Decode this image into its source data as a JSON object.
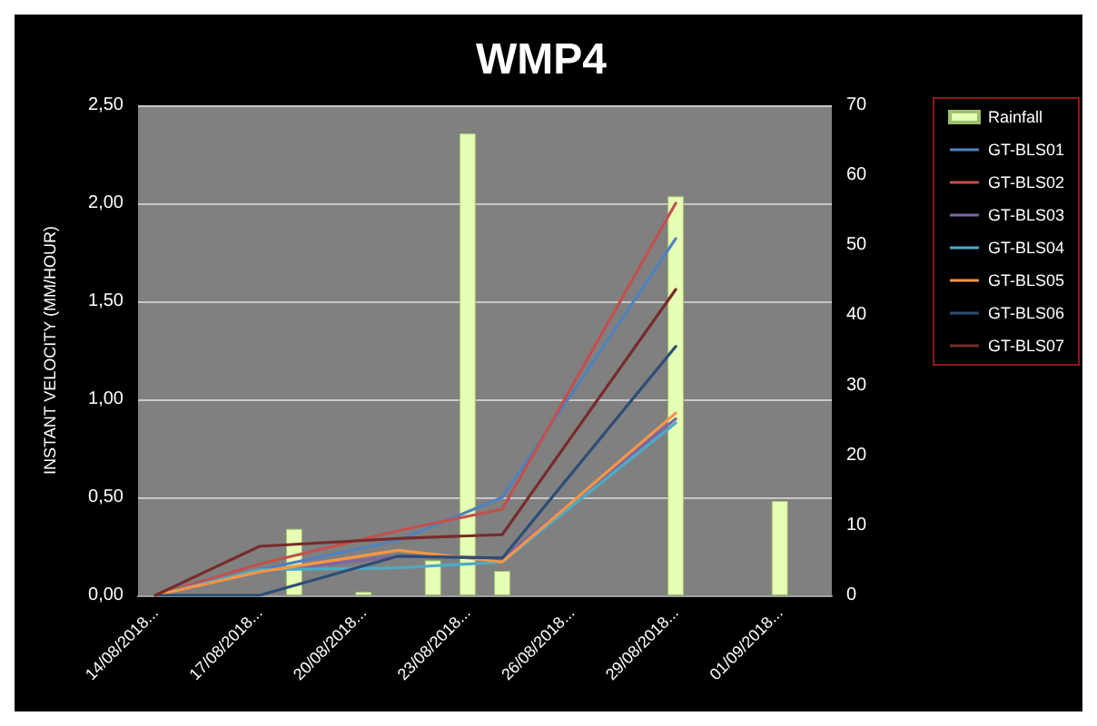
{
  "chart_data": {
    "type": "line",
    "title": "WMP4",
    "ylabel": "INSTANT VELOCITY (MM/HOUR)",
    "xlim": [
      "2018-08-13T12:00",
      "2018-09-02T12:00"
    ],
    "xticks": [
      {
        "value": "2018-08-14",
        "label": "14/08/2018..."
      },
      {
        "value": "2018-08-17",
        "label": "17/08/2018..."
      },
      {
        "value": "2018-08-20",
        "label": "20/08/2018..."
      },
      {
        "value": "2018-08-23",
        "label": "23/08/2018..."
      },
      {
        "value": "2018-08-26",
        "label": "26/08/2018..."
      },
      {
        "value": "2018-08-29",
        "label": "29/08/2018..."
      },
      {
        "value": "2018-09-01",
        "label": "01/09/2018..."
      }
    ],
    "ylim": [
      0,
      2.5
    ],
    "yticks": [
      {
        "value": 0,
        "label": "0,00"
      },
      {
        "value": 0.5,
        "label": "0,50"
      },
      {
        "value": 1,
        "label": "1,00"
      },
      {
        "value": 1.5,
        "label": "1,50"
      },
      {
        "value": 2,
        "label": "2,00"
      },
      {
        "value": 2.5,
        "label": "2,50"
      }
    ],
    "y2lim": [
      0,
      70
    ],
    "y2ticks": [
      0,
      10,
      20,
      30,
      40,
      50,
      60,
      70
    ],
    "grid": "y",
    "legend": "right",
    "marker": "none",
    "line_style": "solid",
    "series": [
      {
        "name": "Rainfall",
        "type": "bar",
        "axis": "y2",
        "color": "#e6ffb3",
        "x": [
          "2018-08-18",
          "2018-08-20",
          "2018-08-22",
          "2018-08-23",
          "2018-08-24",
          "2018-08-29",
          "2018-09-01"
        ],
        "values": [
          9.5,
          0.5,
          5,
          66,
          3.5,
          57,
          13.5
        ]
      },
      {
        "name": "GT-BLS01",
        "color": "#4f81bd",
        "x": [
          "2018-08-14",
          "2018-08-17",
          "2018-08-21",
          "2018-08-24",
          "2018-08-29"
        ],
        "values": [
          0,
          0.13,
          0.28,
          0.5,
          1.82
        ]
      },
      {
        "name": "GT-BLS02",
        "color": "#c0504d",
        "x": [
          "2018-08-14",
          "2018-08-17",
          "2018-08-21",
          "2018-08-24",
          "2018-08-29"
        ],
        "values": [
          0,
          0.16,
          0.33,
          0.44,
          2.0
        ]
      },
      {
        "name": "GT-BLS03",
        "color": "#8064a2",
        "x": [
          "2018-08-14",
          "2018-08-17",
          "2018-08-21",
          "2018-08-24",
          "2018-08-29"
        ],
        "values": [
          0,
          0.12,
          0.2,
          0.19,
          0.9
        ]
      },
      {
        "name": "GT-BLS04",
        "color": "#4bacc6",
        "x": [
          "2018-08-14",
          "2018-08-17",
          "2018-08-21",
          "2018-08-24",
          "2018-08-29"
        ],
        "values": [
          0,
          0.13,
          0.14,
          0.17,
          0.88
        ]
      },
      {
        "name": "GT-BLS05",
        "color": "#f79646",
        "x": [
          "2018-08-14",
          "2018-08-17",
          "2018-08-21",
          "2018-08-24",
          "2018-08-29"
        ],
        "values": [
          0,
          0.12,
          0.23,
          0.17,
          0.93
        ]
      },
      {
        "name": "GT-BLS06",
        "color": "#2c4d75",
        "x": [
          "2018-08-14",
          "2018-08-17",
          "2018-08-21",
          "2018-08-24",
          "2018-08-29"
        ],
        "values": [
          0,
          0,
          0.2,
          0.19,
          1.27
        ]
      },
      {
        "name": "GT-BLS07",
        "color": "#772c2a",
        "x": [
          "2018-08-14",
          "2018-08-17",
          "2018-08-21",
          "2018-08-24",
          "2018-08-29"
        ],
        "values": [
          0,
          0.25,
          0.29,
          0.31,
          1.56
        ]
      }
    ]
  }
}
